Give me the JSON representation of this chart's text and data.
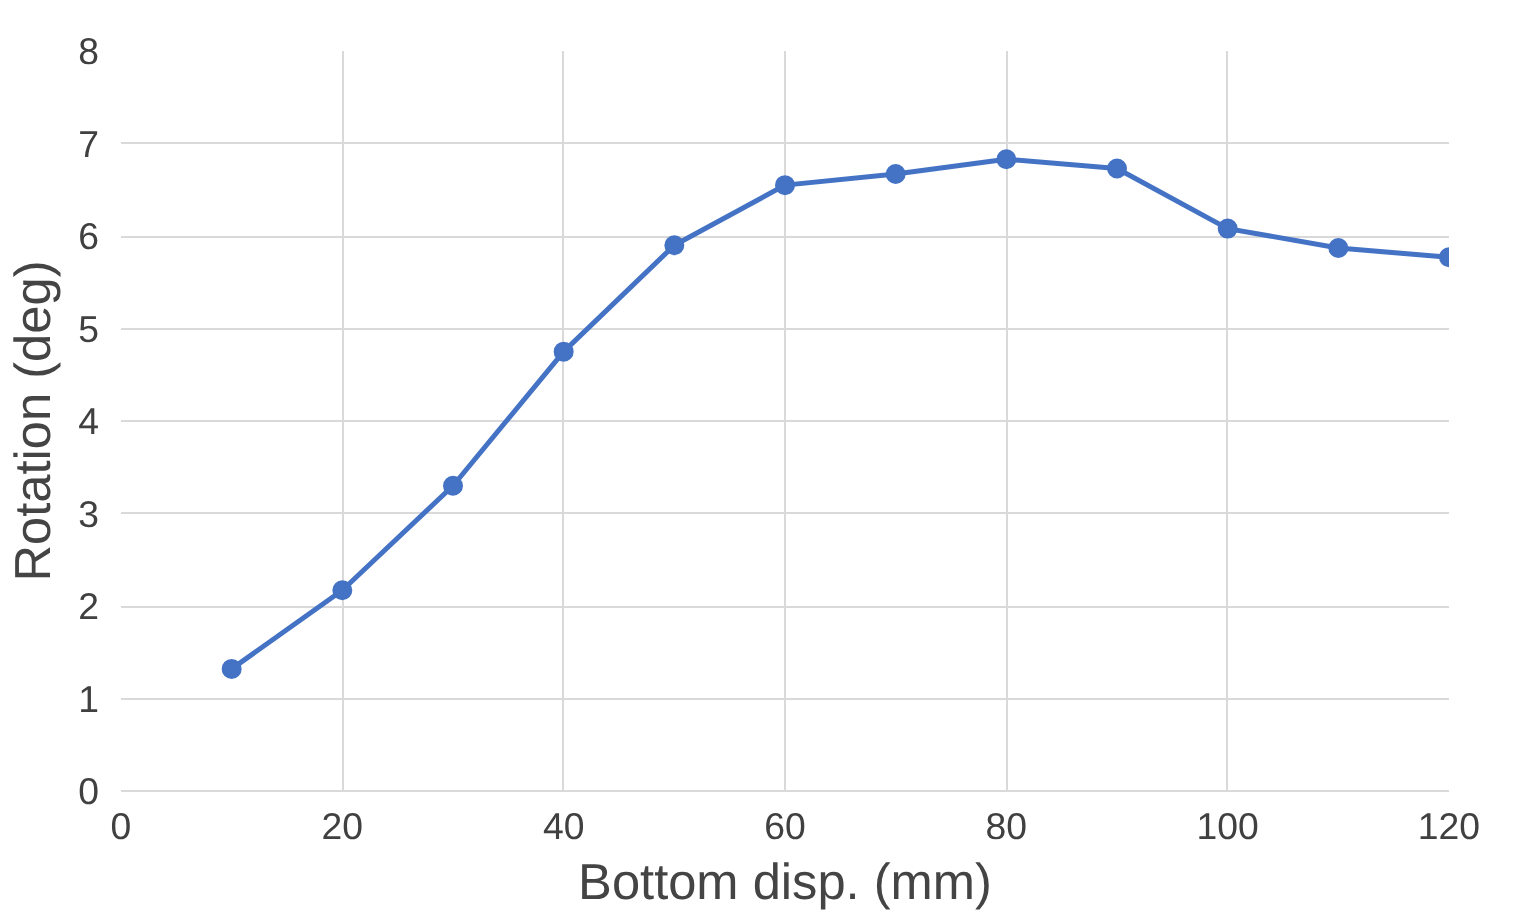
{
  "chart_data": {
    "type": "line",
    "xlabel": "Bottom disp. (mm)",
    "ylabel": "Rotation (deg)",
    "x": [
      10,
      20,
      30,
      40,
      50,
      60,
      70,
      80,
      90,
      100,
      110,
      120
    ],
    "series": [
      {
        "color": "#4472c4",
        "values": [
          1.32,
          2.17,
          3.3,
          4.75,
          5.9,
          6.55,
          6.67,
          6.83,
          6.73,
          6.08,
          5.87,
          5.77
        ]
      }
    ],
    "xlim": [
      0,
      120
    ],
    "xticks": [
      0,
      20,
      40,
      60,
      80,
      100,
      120
    ],
    "ylim": [
      0,
      8
    ],
    "yticks": [
      0,
      1,
      2,
      3,
      4,
      5,
      6,
      7,
      8
    ],
    "grid": true,
    "marker": "circle",
    "line_style": "solid"
  }
}
